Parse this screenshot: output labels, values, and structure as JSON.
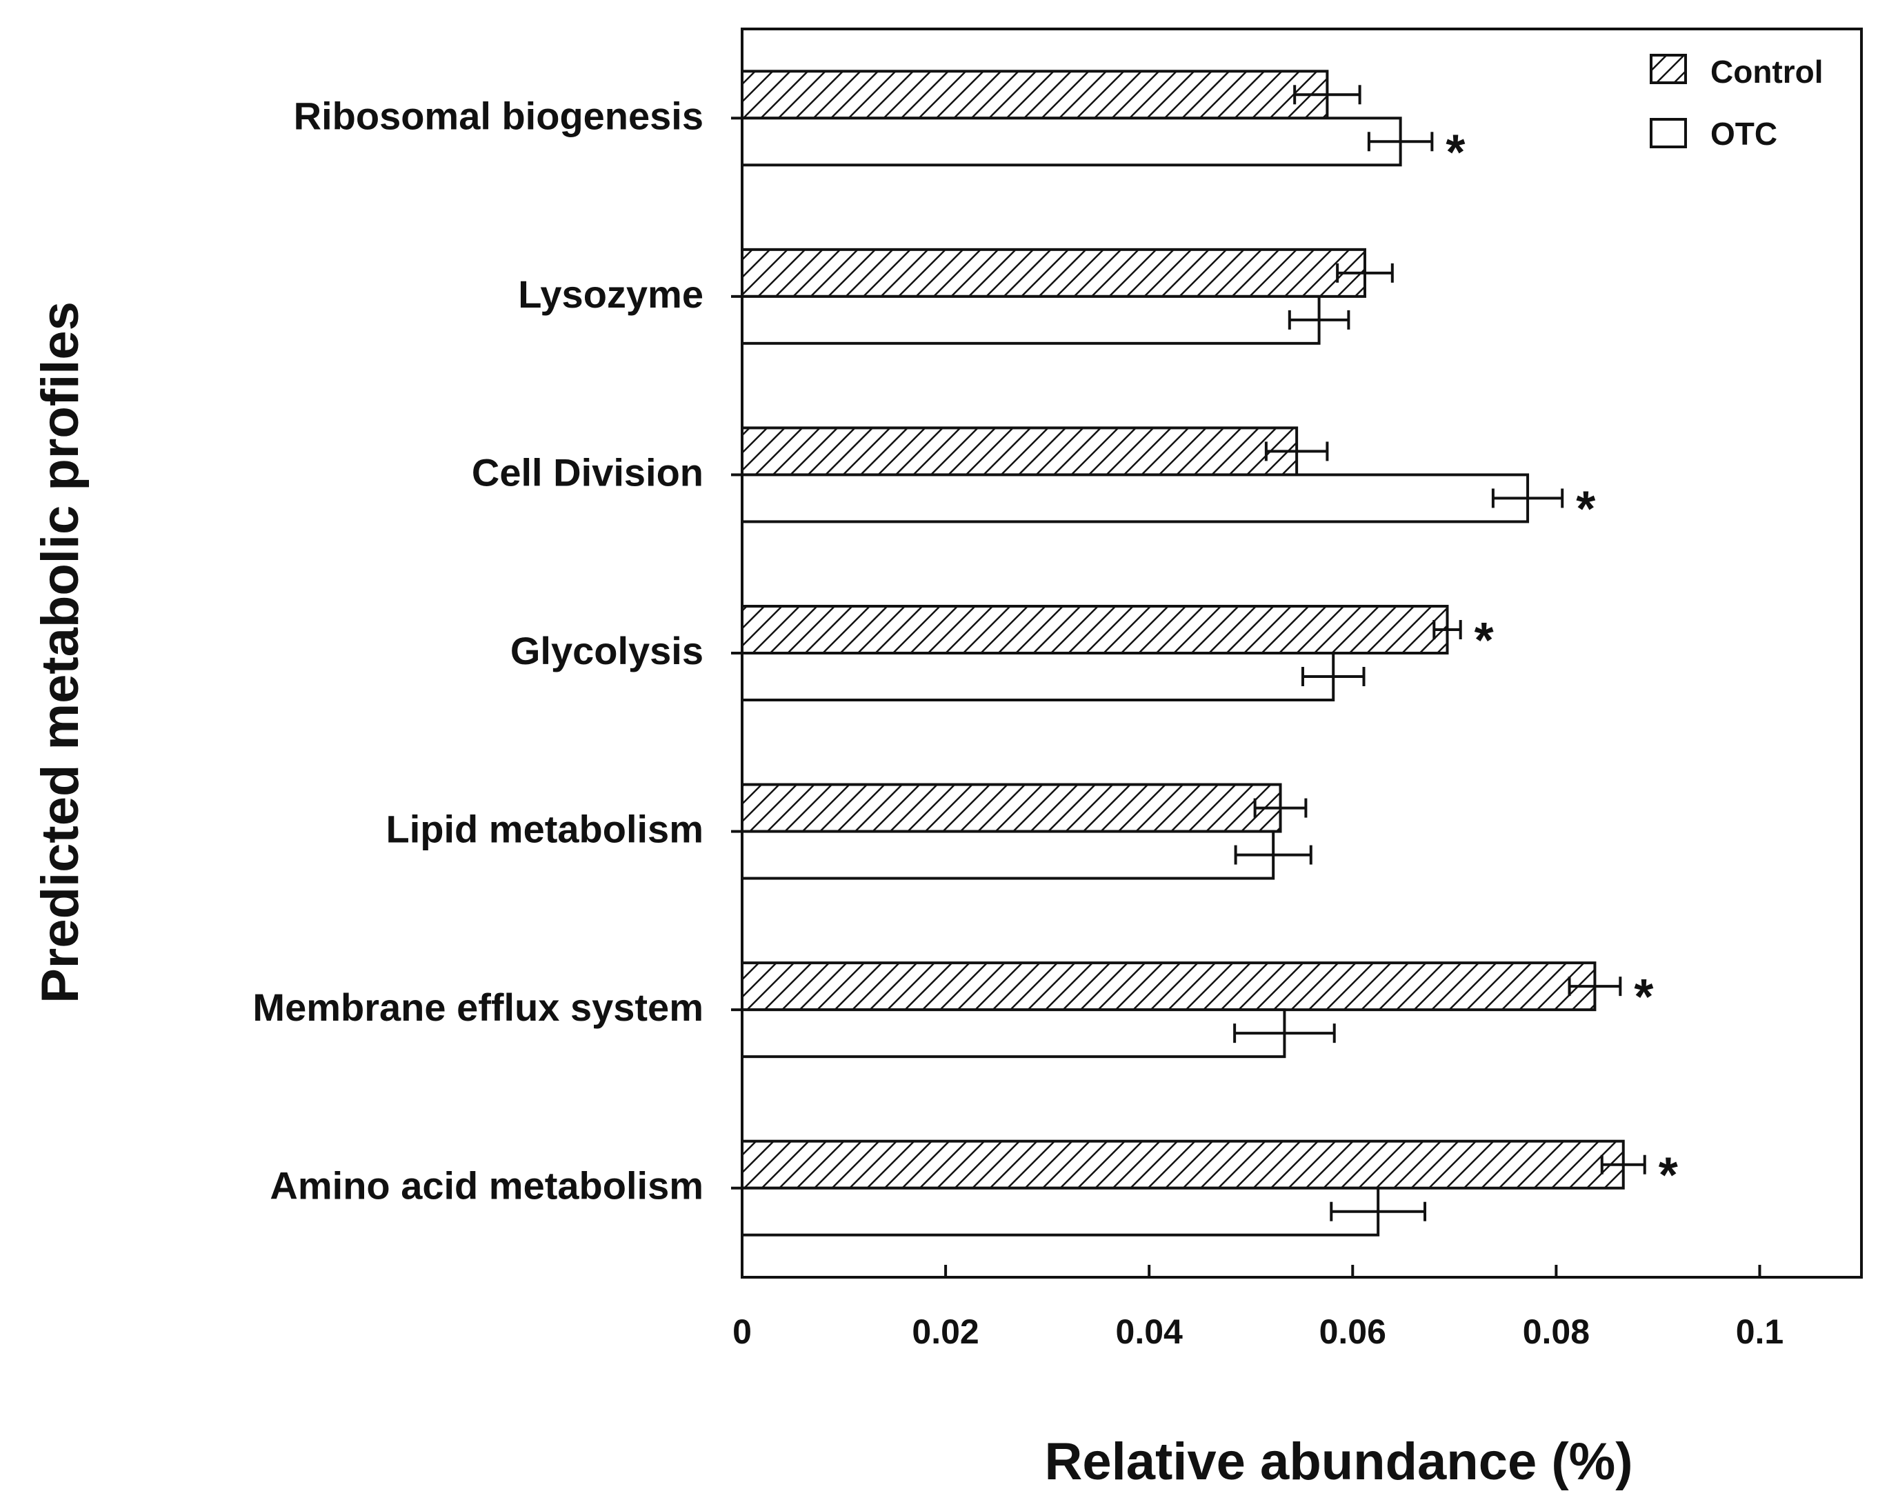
{
  "chart_data": {
    "type": "bar",
    "orientation": "horizontal",
    "title": "",
    "xlabel": "Relative abundance (%)",
    "ylabel": "Predicted metabolic profiles",
    "xlim": [
      0,
      0.11
    ],
    "xticks": [
      0,
      0.02,
      0.04,
      0.06,
      0.08,
      0.1
    ],
    "xtick_labels": [
      "0",
      "0.02",
      "0.04",
      "0.06",
      "0.08",
      "0.1"
    ],
    "grid": false,
    "legend_position": "top-right",
    "categories": [
      "Ribosomal biogenesis",
      "Lysozyme",
      "Cell Division",
      "Glycolysis",
      "Lipid metabolism",
      "Membrane efflux system",
      "Amino acid metabolism"
    ],
    "series": [
      {
        "name": "Control",
        "pattern": "hatched",
        "values": [
          0.0575,
          0.0612,
          0.0545,
          0.0693,
          0.0529,
          0.0838,
          0.0866
        ],
        "errors": [
          0.0032,
          0.0027,
          0.003,
          0.0013,
          0.0025,
          0.0025,
          0.0021
        ],
        "significant": [
          false,
          false,
          false,
          true,
          false,
          true,
          true
        ]
      },
      {
        "name": "OTC",
        "pattern": "open",
        "values": [
          0.0647,
          0.0567,
          0.0772,
          0.0581,
          0.0522,
          0.0533,
          0.0625
        ],
        "errors": [
          0.0031,
          0.0029,
          0.0034,
          0.003,
          0.0037,
          0.0049,
          0.0046
        ],
        "significant": [
          true,
          false,
          true,
          false,
          false,
          false,
          false
        ]
      }
    ],
    "annotations": {
      "significance_marker": "*"
    }
  },
  "colors": {
    "axis": "#111111",
    "bar_fill": "#ffffff",
    "hatch": "#111111"
  }
}
